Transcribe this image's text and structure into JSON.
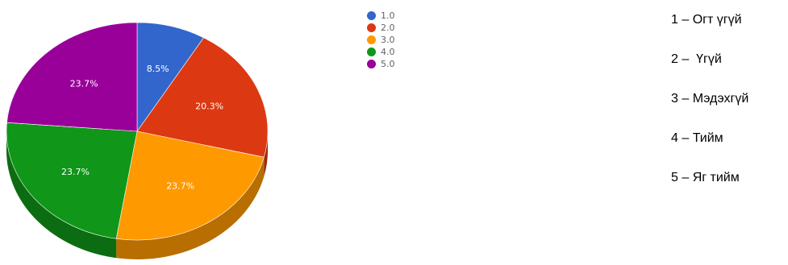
{
  "chart_data": {
    "type": "pie",
    "three_d": true,
    "title": "",
    "categories": [
      "1.0",
      "2.0",
      "3.0",
      "4.0",
      "5.0"
    ],
    "values": [
      8.5,
      20.3,
      23.7,
      23.7,
      23.7
    ],
    "labels": [
      "8.5%",
      "20.3%",
      "23.7%",
      "23.7%",
      "23.7%"
    ],
    "colors": [
      "#3366cc",
      "#dc3912",
      "#ff9900",
      "#109618",
      "#990099"
    ],
    "legend_position": "right"
  },
  "legend": [
    {
      "label": "1.0",
      "color": "#3366cc"
    },
    {
      "label": "2.0",
      "color": "#dc3912"
    },
    {
      "label": "3.0",
      "color": "#ff9900"
    },
    {
      "label": "4.0",
      "color": "#109618"
    },
    {
      "label": "5.0",
      "color": "#990099"
    }
  ],
  "codes": [
    "1 – Огт үгүй",
    "2 –  Үгүй",
    "3 – Мэдэхгүй",
    "4 – Тийм",
    "5 – Яг тийм"
  ]
}
